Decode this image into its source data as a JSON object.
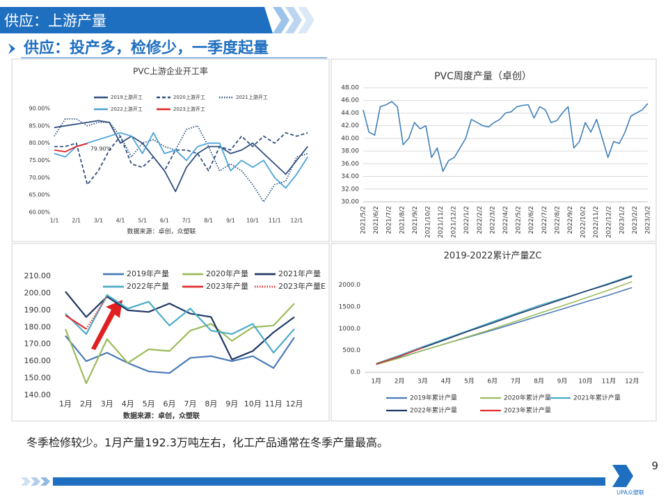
{
  "header": {
    "title": "供应：上游产量",
    "subtitle": "供应：投产多，检修少，一季度起量"
  },
  "chart_data": [
    {
      "type": "line",
      "title": "PVC上游企业开工率",
      "source": "数据来源：卓创，众塑联",
      "annotation": "79.90%",
      "x": [
        0,
        0.5,
        1,
        1.5,
        2,
        2.5,
        3,
        3.5,
        4,
        4.5,
        5,
        5.5,
        6,
        6.5,
        7,
        7.5,
        8,
        8.5,
        9,
        9.5,
        10,
        10.5,
        11,
        11.5
      ],
      "xlim": [
        0,
        12.25
      ],
      "xticks": [
        {
          "value": 0,
          "label": "1/1"
        },
        {
          "value": 1,
          "label": "2/1"
        },
        {
          "value": 2,
          "label": "3/1"
        },
        {
          "value": 3,
          "label": "4/1"
        },
        {
          "value": 4,
          "label": "5/1"
        },
        {
          "value": 5,
          "label": "6/1"
        },
        {
          "value": 6,
          "label": "7/1"
        },
        {
          "value": 7,
          "label": "8/1"
        },
        {
          "value": 8,
          "label": "9/1"
        },
        {
          "value": 9,
          "label": "10/1"
        },
        {
          "value": 10,
          "label": "11/1"
        },
        {
          "value": 11,
          "label": "12/1"
        }
      ],
      "ylim": [
        60,
        90
      ],
      "yticks": [
        {
          "value": 60,
          "label": "60.00%"
        },
        {
          "value": 65,
          "label": "65.00%"
        },
        {
          "value": 70,
          "label": "70.00%"
        },
        {
          "value": 75,
          "label": "75.00%"
        },
        {
          "value": 80,
          "label": "80.00%"
        },
        {
          "value": 85,
          "label": "85.00%"
        },
        {
          "value": 90,
          "label": "90.00%"
        }
      ],
      "grid": false,
      "series": [
        {
          "name": "2019上游开工",
          "color": "#2e4e7e",
          "dash": "solid",
          "values": [
            84.5,
            85,
            85.5,
            86,
            86.5,
            86,
            80,
            82,
            80,
            76,
            72,
            66,
            73,
            77,
            79,
            79,
            77,
            78,
            80,
            77,
            74,
            71,
            75,
            79
          ]
        },
        {
          "name": "2020上游开工",
          "color": "#2e4e7e",
          "dash": "dashed",
          "values": [
            79,
            79,
            80,
            68,
            72,
            78,
            82,
            74,
            73,
            76,
            72,
            78,
            78,
            77,
            72,
            79,
            78,
            82,
            79,
            82,
            80,
            83,
            82,
            83
          ]
        },
        {
          "name": "2021上游开工",
          "color": "#2e4e7e",
          "dash": "dotted",
          "values": [
            82,
            87,
            87,
            85,
            86,
            86,
            82,
            76,
            80,
            81,
            79,
            78,
            84,
            85,
            79,
            72,
            74,
            72,
            68,
            63,
            68,
            69,
            76,
            77
          ]
        },
        {
          "name": "2022上游开工",
          "color": "#4aa3d8",
          "dash": "solid",
          "values": [
            77,
            76,
            79,
            80,
            81,
            82,
            83,
            82,
            77,
            83,
            77,
            78,
            75,
            79,
            80,
            80,
            72,
            75,
            73,
            75,
            70,
            67,
            71,
            76
          ]
        },
        {
          "name": "2023上游开工",
          "color": "#e02020",
          "dash": "solid",
          "values": [
            78,
            77.5,
            79,
            79.9,
            null,
            null,
            null,
            null,
            null,
            null,
            null,
            null,
            null,
            null,
            null,
            null,
            null,
            null,
            null,
            null,
            null,
            null,
            null,
            null
          ]
        }
      ]
    },
    {
      "type": "line",
      "title": "PVC周度产量（卓创）",
      "color": "#3f7fb8",
      "grid": true,
      "x": [
        0,
        0.44,
        0.88,
        1.32,
        1.76,
        2.2,
        2.64,
        3.08,
        3.52,
        3.96,
        4.4,
        4.84,
        5.28,
        5.72,
        6.16,
        6.6,
        7.04,
        7.48,
        7.92,
        8.36,
        8.8,
        9.24,
        9.68,
        10.12,
        10.56,
        11,
        11.44,
        11.88,
        12.32,
        12.76,
        13.2,
        13.64,
        14.08,
        14.52,
        14.96,
        15.4,
        15.84,
        16.28,
        16.72,
        17.16,
        17.6,
        18.04,
        18.48,
        18.92,
        19.36,
        19.8,
        20.24,
        20.68,
        21.12,
        21.56,
        22
      ],
      "values": [
        44.5,
        41,
        40.5,
        45,
        45.3,
        45.8,
        45,
        39,
        40,
        42.5,
        41.5,
        42,
        37,
        38.5,
        34.8,
        36.5,
        37,
        38.5,
        40,
        43,
        42.5,
        42,
        41.8,
        42.5,
        43,
        44,
        44.2,
        45,
        45.2,
        45.3,
        43.2,
        45,
        44.5,
        42.5,
        42.8,
        44,
        45,
        38.5,
        39.5,
        42.5,
        41,
        43,
        40,
        37,
        39.5,
        39.2,
        41,
        43.5,
        44,
        44.5,
        45.5
      ],
      "xlim": [
        0,
        22
      ],
      "xticks": [
        {
          "value": 0,
          "label": "2021/5/2"
        },
        {
          "value": 1,
          "label": "2021/6/2"
        },
        {
          "value": 2,
          "label": "2021/7/2"
        },
        {
          "value": 3,
          "label": "2021/8/2"
        },
        {
          "value": 4,
          "label": "2021/9/2"
        },
        {
          "value": 5,
          "label": "2021/10/2"
        },
        {
          "value": 6,
          "label": "2021/11/2"
        },
        {
          "value": 7,
          "label": "2021/12/2"
        },
        {
          "value": 8,
          "label": "2022/1/2"
        },
        {
          "value": 9,
          "label": "2022/2/2"
        },
        {
          "value": 10,
          "label": "2022/3/2"
        },
        {
          "value": 11,
          "label": "2022/4/2"
        },
        {
          "value": 12,
          "label": "2022/5/2"
        },
        {
          "value": 13,
          "label": "2022/6/2"
        },
        {
          "value": 14,
          "label": "2022/7/2"
        },
        {
          "value": 15,
          "label": "2022/8/2"
        },
        {
          "value": 16,
          "label": "2022/9/2"
        },
        {
          "value": 17,
          "label": "2022/10/2"
        },
        {
          "value": 18,
          "label": "2022/11/2"
        },
        {
          "value": 19,
          "label": "2022/12/2"
        },
        {
          "value": 20,
          "label": "2023/1/2"
        },
        {
          "value": 21,
          "label": "2023/2/2"
        },
        {
          "value": 22,
          "label": "2023/3/2"
        }
      ],
      "ylim": [
        30,
        48
      ],
      "yticks": [
        {
          "value": 30,
          "label": "30.00"
        },
        {
          "value": 32,
          "label": "32.00"
        },
        {
          "value": 34,
          "label": "34.00"
        },
        {
          "value": 36,
          "label": "36.00"
        },
        {
          "value": 38,
          "label": "38.00"
        },
        {
          "value": 40,
          "label": "40.00"
        },
        {
          "value": 42,
          "label": "42.00"
        },
        {
          "value": 44,
          "label": "44.00"
        },
        {
          "value": 46,
          "label": "46.00"
        },
        {
          "value": 48,
          "label": "48.00"
        }
      ]
    },
    {
      "type": "line",
      "source": "数据来源：卓创，众塑联",
      "grid": false,
      "categories": [
        "1月",
        "2月",
        "3月",
        "4月",
        "5月",
        "6月",
        "7月",
        "8月",
        "9月",
        "10月",
        "11月",
        "12月"
      ],
      "ylim": [
        140,
        210
      ],
      "yticks": [
        {
          "value": 140,
          "label": "140.00"
        },
        {
          "value": 150,
          "label": "150.00"
        },
        {
          "value": 160,
          "label": "160.00"
        },
        {
          "value": 170,
          "label": "170.00"
        },
        {
          "value": 180,
          "label": "180.00"
        },
        {
          "value": 190,
          "label": "190.00"
        },
        {
          "value": 200,
          "label": "200.00"
        },
        {
          "value": 210,
          "label": "210.00"
        }
      ],
      "series": [
        {
          "name": "2019年产量",
          "color": "#4a7ab8",
          "dash": "solid",
          "values": [
            175,
            160,
            165,
            159,
            154,
            153,
            162,
            163,
            160,
            163,
            156,
            174
          ]
        },
        {
          "name": "2020年产量",
          "color": "#9bbb59",
          "dash": "solid",
          "values": [
            179,
            147,
            173,
            159,
            167,
            166,
            178,
            182,
            172,
            180,
            181,
            194
          ]
        },
        {
          "name": "2021年产量",
          "color": "#1f3864",
          "dash": "solid",
          "values": [
            201,
            186,
            198,
            190,
            189,
            194,
            188,
            186,
            161,
            166,
            177,
            186
          ]
        },
        {
          "name": "2022年产量",
          "color": "#4bacc6",
          "dash": "solid",
          "values": [
            188,
            176,
            199,
            191,
            195,
            181,
            191,
            178,
            176,
            182,
            165,
            179
          ]
        },
        {
          "name": "2023年产量",
          "color": "#e03030",
          "dash": "solid",
          "values": [
            187,
            179,
            null,
            null,
            null,
            null,
            null,
            null,
            null,
            null,
            null,
            null
          ]
        },
        {
          "name": "2023年产量E",
          "color": "#e03030",
          "dash": "dotted",
          "values": [
            null,
            179,
            198,
            null,
            null,
            null,
            null,
            null,
            null,
            null,
            null,
            null
          ]
        }
      ]
    },
    {
      "type": "line",
      "title": "2019-2022累计产量ZC",
      "grid": false,
      "categories": [
        "1月",
        "2月",
        "3月",
        "4月",
        "5月",
        "6月",
        "7月",
        "8月",
        "9月",
        "10月",
        "11月",
        "12月"
      ],
      "ylim": [
        0,
        2250
      ],
      "yticks": [
        {
          "value": 0,
          "label": "0.0"
        },
        {
          "value": 500,
          "label": "500.0"
        },
        {
          "value": 1000,
          "label": "1000.0"
        },
        {
          "value": 1500,
          "label": "1500.0"
        },
        {
          "value": 2000,
          "label": "2000.0"
        }
      ],
      "series": [
        {
          "name": "2019年累计产量",
          "color": "#4a7ab8",
          "dash": "solid",
          "values": [
            175,
            335,
            500,
            659,
            813,
            966,
            1128,
            1291,
            1451,
            1614,
            1770,
            1944
          ]
        },
        {
          "name": "2020年累计产量",
          "color": "#9bbb59",
          "dash": "solid",
          "values": [
            179,
            326,
            499,
            658,
            825,
            991,
            1169,
            1351,
            1523,
            1703,
            1884,
            2078
          ]
        },
        {
          "name": "2021年累计产量",
          "color": "#4bacc6",
          "dash": "solid",
          "values": [
            201,
            387,
            585,
            775,
            964,
            1158,
            1346,
            1532,
            1693,
            1859,
            2036,
            2222
          ]
        },
        {
          "name": "2022年累计产量",
          "color": "#1f3864",
          "dash": "solid",
          "values": [
            188,
            364,
            563,
            754,
            949,
            1130,
            1321,
            1499,
            1675,
            1857,
            2022,
            2201
          ]
        },
        {
          "name": "2023年累计产量",
          "color": "#e03030",
          "dash": "solid",
          "values": [
            187,
            366,
            564,
            null,
            null,
            null,
            null,
            null,
            null,
            null,
            null,
            null
          ]
        }
      ]
    }
  ],
  "body_text": "冬季检修较少。1月产量192.3万吨左右，化工产品通常在冬季产量最高。",
  "page_number": "9",
  "logo": "UPA众塑联"
}
